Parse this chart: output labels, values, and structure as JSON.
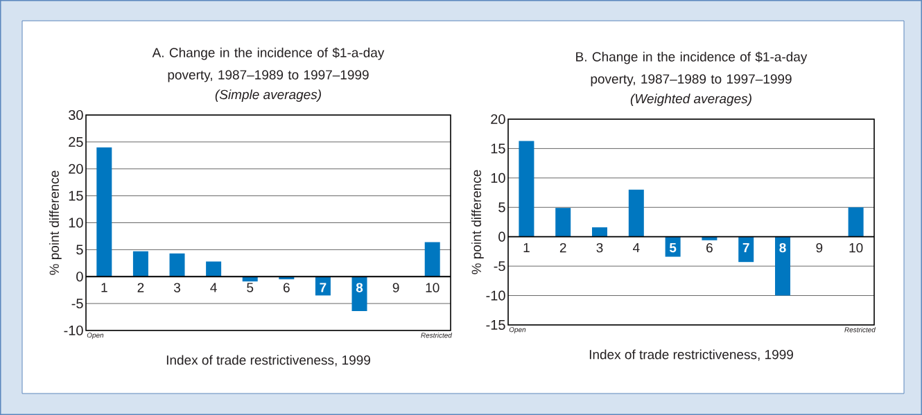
{
  "chart_data": [
    {
      "type": "bar",
      "title": "A.  Change in the incidence of $1-a-day poverty, 1987–1989 to 1997–1999",
      "subtitle": "(Simple averages)",
      "xlabel": "Index of trade restrictiveness, 1999",
      "ylabel": "% point difference",
      "categories": [
        "1",
        "2",
        "3",
        "4",
        "5",
        "6",
        "7",
        "8",
        "9",
        "10"
      ],
      "values": [
        24,
        4.7,
        4.3,
        2.8,
        -0.9,
        -0.5,
        -3.5,
        -6.4,
        null,
        6.4
      ],
      "color": "#0077c0",
      "ylim": [
        -10,
        30
      ],
      "yticks": [
        -10,
        -5,
        0,
        5,
        10,
        15,
        20,
        25,
        30
      ],
      "grid": "y",
      "annotations": [
        "Open",
        "Restricted"
      ]
    },
    {
      "type": "bar",
      "title": "B.  Change in the incidence of $1-a-day poverty, 1987–1989 to 1997–1999",
      "subtitle": "(Weighted averages)",
      "xlabel": "Index of trade restrictiveness, 1999",
      "ylabel": "% point difference",
      "categories": [
        "1",
        "2",
        "3",
        "4",
        "5",
        "6",
        "7",
        "8",
        "9",
        "10"
      ],
      "values": [
        16.3,
        4.9,
        1.6,
        8.0,
        -3.4,
        -0.6,
        -4.3,
        -10,
        null,
        5.0
      ],
      "color": "#0077c0",
      "ylim": [
        -15,
        20
      ],
      "yticks": [
        -15,
        -10,
        -5,
        0,
        5,
        10,
        15,
        20
      ],
      "grid": "y",
      "annotations": [
        "Open",
        "Restricted"
      ]
    }
  ]
}
